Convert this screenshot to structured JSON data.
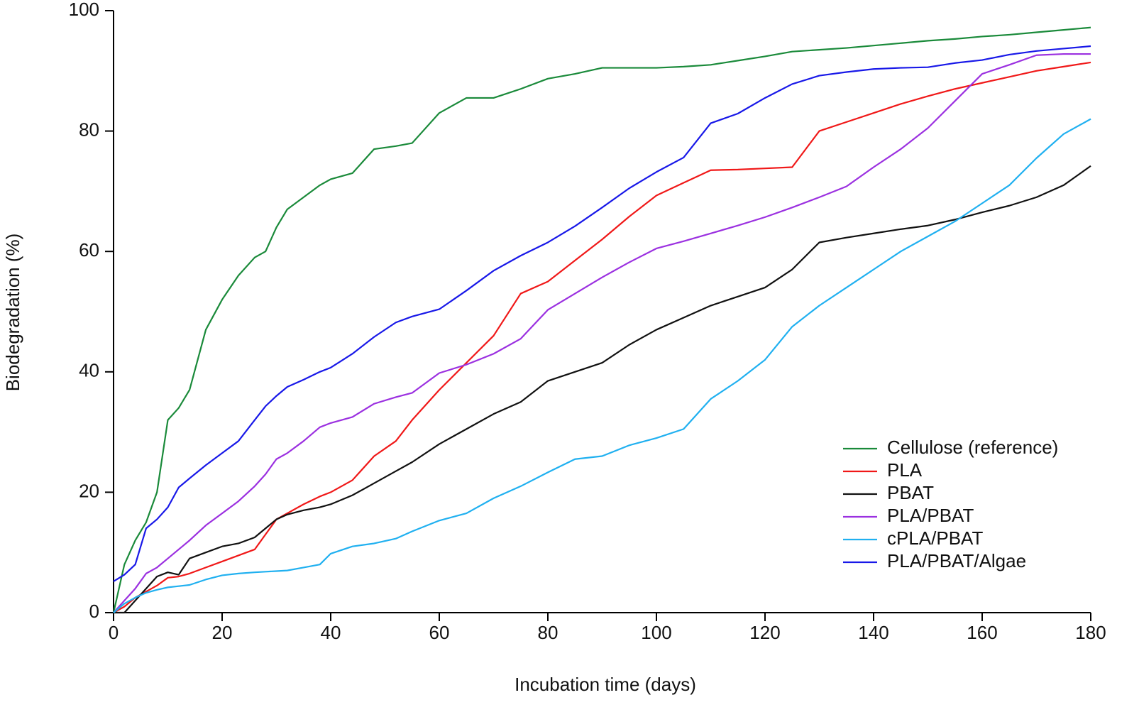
{
  "chart_data": {
    "type": "line",
    "x_label": "Incubation time (days)",
    "y_label": "Biodegradation (%)",
    "x": [
      0,
      2,
      4,
      6,
      8,
      10,
      12,
      14,
      17,
      20,
      23,
      26,
      28,
      30,
      32,
      35,
      38,
      40,
      44,
      48,
      52,
      55,
      60,
      65,
      70,
      75,
      80,
      85,
      90,
      95,
      100,
      105,
      110,
      115,
      120,
      125,
      130,
      135,
      140,
      145,
      150,
      155,
      160,
      165,
      170,
      175,
      180
    ],
    "xlim": [
      0,
      180
    ],
    "xticks": [
      0,
      20,
      40,
      60,
      80,
      100,
      120,
      140,
      160,
      180
    ],
    "ylim": [
      0,
      100
    ],
    "yticks": [
      0,
      20,
      40,
      60,
      80,
      100
    ],
    "legend": "lower right",
    "series": [
      {
        "name": "Cellulose (reference)",
        "color": "#1a8a3a",
        "values": [
          0,
          8,
          12,
          15,
          20,
          32,
          34,
          37,
          47,
          52,
          56,
          59,
          60,
          64,
          67,
          69,
          71,
          72,
          73,
          77,
          77.5,
          78,
          83,
          85.5,
          85.5,
          87,
          88.7,
          89.5,
          90.5,
          90.5,
          90.5,
          90.7,
          91,
          91.7,
          92.4,
          93.2,
          93.5,
          93.8,
          94.2,
          94.6,
          95,
          95.3,
          95.7,
          96,
          96.4,
          96.8,
          97.2
        ]
      },
      {
        "name": "PLA",
        "color": "#f01818",
        "values": [
          0,
          1,
          2.5,
          3.5,
          4.5,
          5.8,
          6,
          6.5,
          7.5,
          8.5,
          9.5,
          10.5,
          13,
          15.5,
          16.5,
          18,
          19.3,
          20,
          22,
          26,
          28.5,
          32,
          37,
          41.5,
          46,
          53,
          55,
          58.5,
          62,
          65.8,
          69.3,
          71.4,
          73.5,
          73.6,
          73.8,
          74,
          80,
          81.5,
          83,
          84.5,
          85.8,
          87,
          88,
          89,
          90,
          90.7,
          91.4
        ]
      },
      {
        "name": "PBAT",
        "color": "#111111",
        "values": [
          0,
          0,
          2,
          4,
          6,
          6.7,
          6.3,
          9,
          10,
          11,
          11.5,
          12.5,
          14,
          15.5,
          16.3,
          17,
          17.5,
          18,
          19.5,
          21.5,
          23.5,
          25,
          28,
          30.5,
          33,
          35,
          38.5,
          40,
          41.5,
          44.5,
          47,
          49,
          51,
          52.5,
          54,
          57,
          61.5,
          62.3,
          63,
          63.7,
          64.3,
          65.3,
          66.5,
          67.6,
          69,
          71,
          74.2
        ]
      },
      {
        "name": "PLA/PBAT",
        "color": "#9b30e0",
        "values": [
          0,
          2,
          4,
          6.5,
          7.5,
          9,
          10.5,
          12,
          14.5,
          16.5,
          18.5,
          21,
          23,
          25.5,
          26.5,
          28.5,
          30.8,
          31.5,
          32.5,
          34.7,
          35.8,
          36.5,
          39.8,
          41.2,
          43,
          45.5,
          50.3,
          53,
          55.7,
          58.2,
          60.5,
          61.7,
          63,
          64.3,
          65.7,
          67.3,
          69,
          70.8,
          74,
          77,
          80.5,
          85,
          89.5,
          91,
          92.6,
          92.8,
          92.8
        ]
      },
      {
        "name": "cPLA/PBAT",
        "color": "#20b0f0",
        "values": [
          0,
          1.5,
          2.5,
          3.3,
          3.8,
          4.2,
          4.4,
          4.6,
          5.5,
          6.2,
          6.5,
          6.7,
          6.8,
          6.9,
          7,
          7.5,
          8,
          9.8,
          11,
          11.5,
          12.3,
          13.5,
          15.3,
          16.5,
          19,
          21,
          23.3,
          25.5,
          26,
          27.8,
          29,
          30.5,
          35.5,
          38.5,
          42,
          47.5,
          51,
          54,
          57,
          60,
          62.5,
          65,
          68,
          71,
          75.5,
          79.5,
          82
        ]
      },
      {
        "name": "PLA/PBAT/Algae",
        "color": "#1818e8",
        "values": [
          5.2,
          6.3,
          8,
          14,
          15.5,
          17.5,
          20.8,
          22.3,
          24.5,
          26.5,
          28.5,
          32,
          34.3,
          36,
          37.5,
          38.7,
          40,
          40.7,
          43,
          45.8,
          48.2,
          49.2,
          50.4,
          53.5,
          56.8,
          59.3,
          61.5,
          64.2,
          67.3,
          70.5,
          73.2,
          75.6,
          81.3,
          82.9,
          85.5,
          87.8,
          89.2,
          89.8,
          90.3,
          90.5,
          90.6,
          91.3,
          91.8,
          92.7,
          93.3,
          93.7,
          94.1
        ]
      }
    ]
  }
}
